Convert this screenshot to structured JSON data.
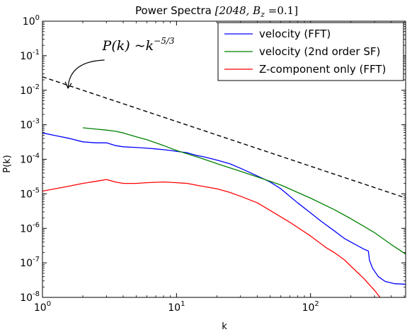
{
  "chart_data": {
    "type": "line",
    "title_prefix": "Power Spectra ",
    "title_math": "[2048, B",
    "title_sub": "z",
    "title_tail": " =0.1]",
    "xlabel": "k",
    "ylabel": "P(k)",
    "x_scale": "log",
    "y_scale": "log",
    "xlim": [
      1,
      512
    ],
    "ylim": [
      1e-08,
      1
    ],
    "x_ticks": [
      {
        "value": 1,
        "base": "10",
        "exp": "0"
      },
      {
        "value": 10,
        "base": "10",
        "exp": "1"
      },
      {
        "value": 100,
        "base": "10",
        "exp": "2"
      }
    ],
    "y_ticks": [
      {
        "value": 1,
        "base": "10",
        "exp": "0"
      },
      {
        "value": 0.1,
        "base": "10",
        "exp": "-1"
      },
      {
        "value": 0.01,
        "base": "10",
        "exp": "-2"
      },
      {
        "value": 0.001,
        "base": "10",
        "exp": "-3"
      },
      {
        "value": 0.0001,
        "base": "10",
        "exp": "-4"
      },
      {
        "value": 1e-05,
        "base": "10",
        "exp": "-5"
      },
      {
        "value": 1e-06,
        "base": "10",
        "exp": "-6"
      },
      {
        "value": 1e-07,
        "base": "10",
        "exp": "-7"
      },
      {
        "value": 1e-08,
        "base": "10",
        "exp": "-8"
      }
    ],
    "legend_position": "top-right",
    "series": [
      {
        "name": "velocity (FFT)",
        "color": "#0000ff",
        "points": [
          [
            1,
            0.00058
          ],
          [
            1.3,
            0.00047
          ],
          [
            1.6,
            0.0004
          ],
          [
            2,
            0.00032
          ],
          [
            2.5,
            0.0003
          ],
          [
            3,
            0.0003
          ],
          [
            3.5,
            0.00025
          ],
          [
            4,
            0.00023
          ],
          [
            5,
            0.00022
          ],
          [
            6,
            0.00021
          ],
          [
            7,
            0.0002
          ],
          [
            8,
            0.00019
          ],
          [
            9,
            0.00018
          ],
          [
            10,
            0.00017
          ],
          [
            12,
            0.000155
          ],
          [
            14,
            0.00013
          ],
          [
            16,
            0.000118
          ],
          [
            20,
            9.5e-05
          ],
          [
            25,
            7.4e-05
          ],
          [
            30,
            5.5e-05
          ],
          [
            35,
            4.2e-05
          ],
          [
            40,
            3.3e-05
          ],
          [
            50,
            2.2e-05
          ],
          [
            60,
            1.4e-05
          ],
          [
            70,
            8.5e-06
          ],
          [
            80,
            5.5e-06
          ],
          [
            100,
            2.8e-06
          ],
          [
            120,
            1.6e-06
          ],
          [
            150,
            8.5e-07
          ],
          [
            180,
            5e-07
          ],
          [
            200,
            4e-07
          ],
          [
            250,
            2.5e-07
          ],
          [
            270,
            2.2e-07
          ],
          [
            275,
            1.2e-07
          ],
          [
            290,
            7e-08
          ],
          [
            320,
            4e-08
          ],
          [
            360,
            2.9e-08
          ],
          [
            420,
            2.5e-08
          ],
          [
            512,
            2.4e-08
          ]
        ]
      },
      {
        "name": "velocity (2nd order SF)",
        "color": "#008000",
        "points": [
          [
            2,
            0.00082
          ],
          [
            2.5,
            0.00075
          ],
          [
            3,
            0.0007
          ],
          [
            3.5,
            0.00065
          ],
          [
            4,
            0.00058
          ],
          [
            5,
            0.00045
          ],
          [
            6,
            0.00037
          ],
          [
            8,
            0.00025
          ],
          [
            10,
            0.00018
          ],
          [
            15,
            0.00011
          ],
          [
            20,
            7.5e-05
          ],
          [
            30,
            4.5e-05
          ],
          [
            40,
            3.1e-05
          ],
          [
            60,
            1.8e-05
          ],
          [
            80,
            1.1e-05
          ],
          [
            100,
            7.5e-06
          ],
          [
            150,
            3.5e-06
          ],
          [
            200,
            1.9e-06
          ],
          [
            300,
            7.5e-07
          ],
          [
            400,
            3.4e-07
          ],
          [
            512,
            1.8e-07
          ]
        ]
      },
      {
        "name": "Z-component only (FFT)",
        "color": "#ff0000",
        "points": [
          [
            1,
            1.2e-05
          ],
          [
            1.5,
            1.6e-05
          ],
          [
            2,
            2e-05
          ],
          [
            2.5,
            2.3e-05
          ],
          [
            3,
            2.6e-05
          ],
          [
            3.5,
            2.2e-05
          ],
          [
            4,
            2e-05
          ],
          [
            5,
            2e-05
          ],
          [
            6,
            2.1e-05
          ],
          [
            8,
            2.2e-05
          ],
          [
            10,
            2.1e-05
          ],
          [
            12,
            2e-05
          ],
          [
            15,
            1.7e-05
          ],
          [
            20,
            1.4e-05
          ],
          [
            25,
            1.1e-05
          ],
          [
            30,
            8.5e-06
          ],
          [
            40,
            5.5e-06
          ],
          [
            50,
            3.3e-06
          ],
          [
            70,
            1.5e-06
          ],
          [
            100,
            6e-07
          ],
          [
            130,
            2.8e-07
          ],
          [
            150,
            2e-07
          ],
          [
            180,
            1.2e-07
          ],
          [
            200,
            8e-08
          ],
          [
            250,
            3.5e-08
          ],
          [
            300,
            1.6e-08
          ],
          [
            330,
            1e-08
          ]
        ]
      }
    ],
    "reference_line": {
      "style": "dashed",
      "color": "#000000",
      "points": [
        [
          1,
          0.0245
        ],
        [
          512,
          7.6e-06
        ]
      ]
    },
    "annotation": {
      "label_math": "P(k) ~k",
      "label_exp": "−5/3",
      "arrow_tip": [
        1.55,
        0.0115
      ],
      "arrow_tail": [
        2.9,
        0.075
      ]
    }
  }
}
